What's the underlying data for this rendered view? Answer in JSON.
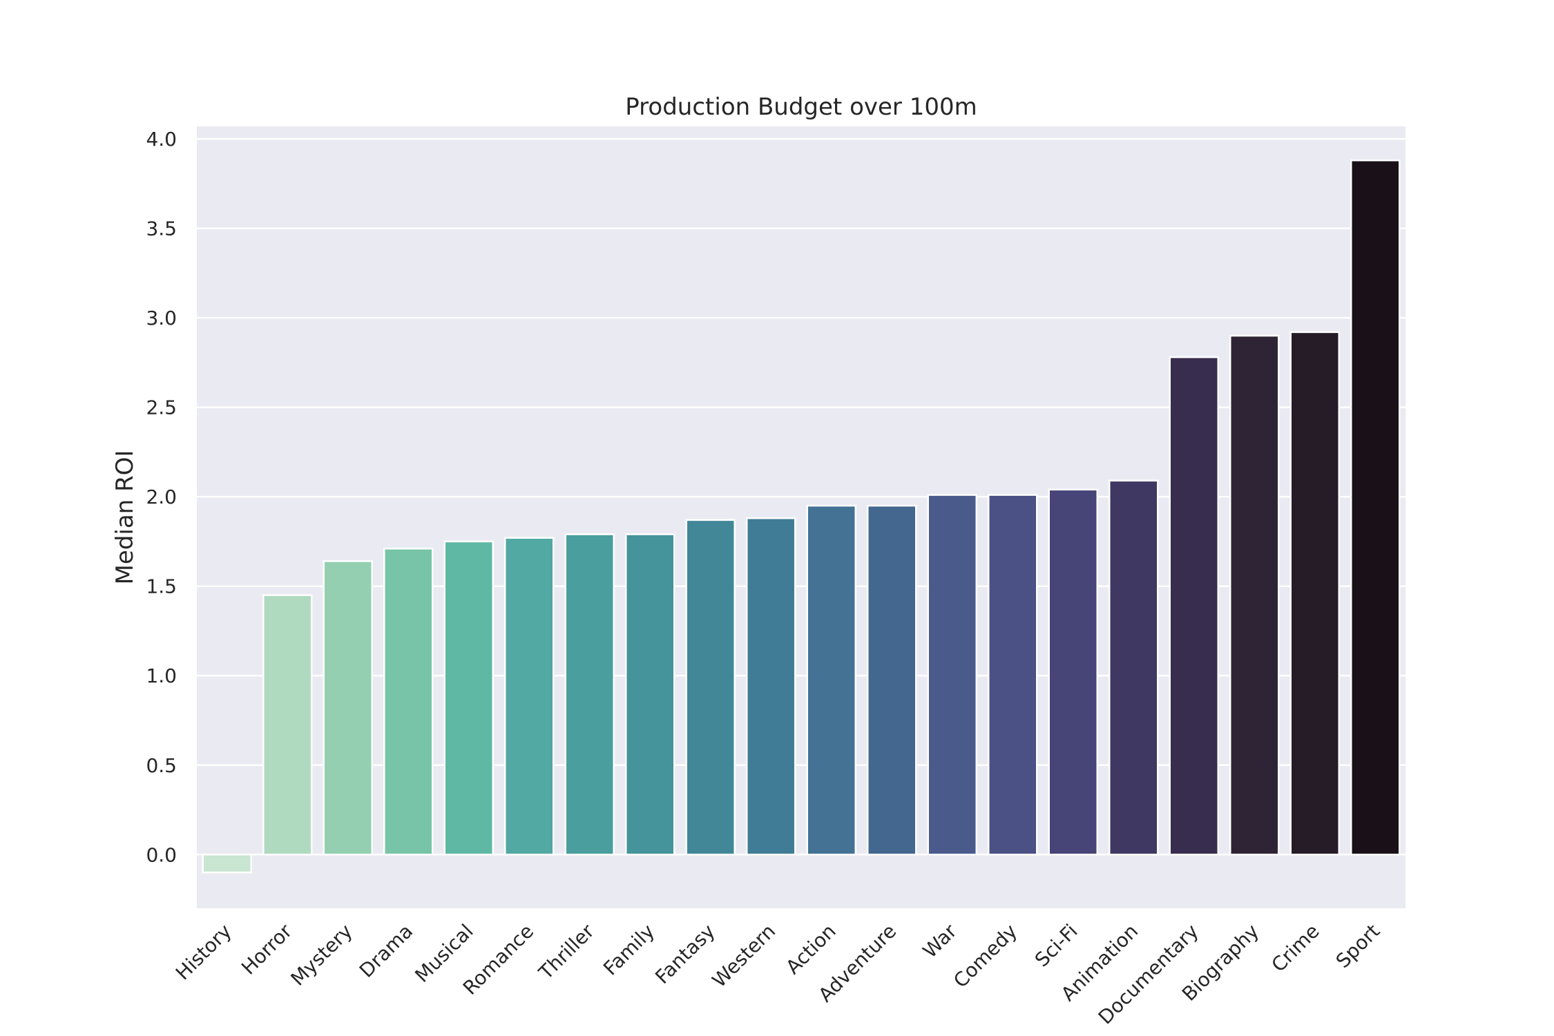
{
  "chart_data": {
    "type": "bar",
    "title": "Production Budget over 100m",
    "xlabel": "",
    "ylabel": "Median ROI",
    "ylim": [
      -0.3,
      4.07
    ],
    "yticks": [
      "0.0",
      "0.5",
      "1.0",
      "1.5",
      "2.0",
      "2.5",
      "3.0",
      "3.5",
      "4.0"
    ],
    "grid": true,
    "categories": [
      "History",
      "Horror",
      "Mystery",
      "Drama",
      "Musical",
      "Romance",
      "Thriller",
      "Family",
      "Fantasy",
      "Western",
      "Action",
      "Adventure",
      "War",
      "Comedy",
      "Sci-Fi",
      "Animation",
      "Documentary",
      "Biography",
      "Crime",
      "Sport"
    ],
    "values": [
      -0.1,
      1.45,
      1.64,
      1.71,
      1.75,
      1.77,
      1.79,
      1.79,
      1.87,
      1.88,
      1.95,
      1.95,
      2.01,
      2.01,
      2.04,
      2.09,
      2.78,
      2.9,
      2.92,
      3.88
    ],
    "colors": [
      "#c8e6d2",
      "#b0dac0",
      "#93cfb0",
      "#78c4a8",
      "#5fb8a4",
      "#52a8a3",
      "#4a9e9e",
      "#45939b",
      "#428798",
      "#417c96",
      "#437295",
      "#43678f",
      "#4a5b8b",
      "#4b5185",
      "#474478",
      "#3f3862",
      "#382d4e",
      "#2f2436",
      "#251c28",
      "#1a1118"
    ],
    "background": "#eaeaf2",
    "grid_color": "#ffffff"
  }
}
